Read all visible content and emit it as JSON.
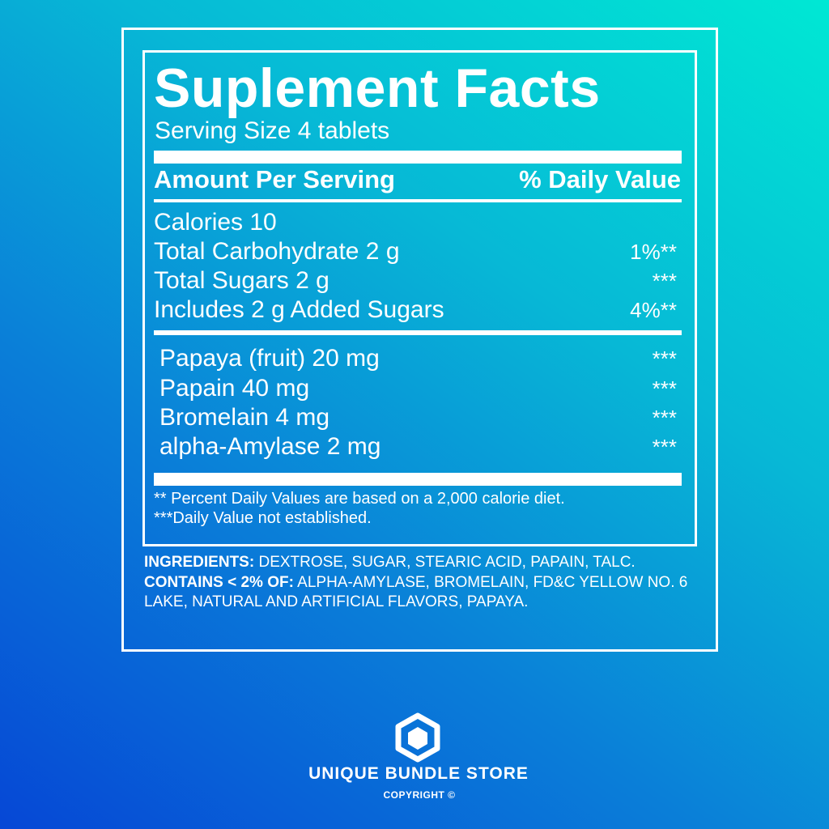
{
  "title": "Suplement Facts",
  "serving_size": "Serving Size 4 tablets",
  "header": {
    "amount": "Amount Per Serving",
    "daily_value": "% Daily Value"
  },
  "nutrients": [
    {
      "label": "Calories 10",
      "dv": ""
    },
    {
      "label": "Total Carbohydrate 2 g",
      "dv": "1%**"
    },
    {
      "label": "Total Sugars 2 g",
      "dv": "***"
    },
    {
      "label": "Includes 2 g Added Sugars",
      "dv": "4%**"
    }
  ],
  "ingredients_list": [
    {
      "label": "Papaya (fruit) 20 mg",
      "dv": "***"
    },
    {
      "label": "Papain 40 mg",
      "dv": "***"
    },
    {
      "label": "Bromelain 4 mg",
      "dv": "***"
    },
    {
      "label": "alpha-Amylase 2 mg",
      "dv": "***"
    }
  ],
  "footnotes": [
    "** Percent Daily Values are based on a 2,000 calorie diet.",
    "***Daily Value not established."
  ],
  "ingredients": {
    "label": "INGREDIENTS:",
    "text": " DEXTROSE, SUGAR, STEARIC ACID, PAPAIN, TALC.",
    "contains_label": "CONTAINS < 2% OF:",
    "contains_text": " ALPHA-AMYLASE, BROMELAIN, FD&C YELLOW NO. 6 LAKE, NATURAL AND ARTIFICIAL FLAVORS, PAPAYA."
  },
  "brand": {
    "name": "UNIQUE BUNDLE STORE",
    "copyright": "COPYRIGHT ©",
    "logo_icon": "hexagon-icon"
  },
  "colors": {
    "gradient_top_right": "#00e8d4",
    "gradient_bottom_left": "#0647d6",
    "text": "#ffffff"
  }
}
